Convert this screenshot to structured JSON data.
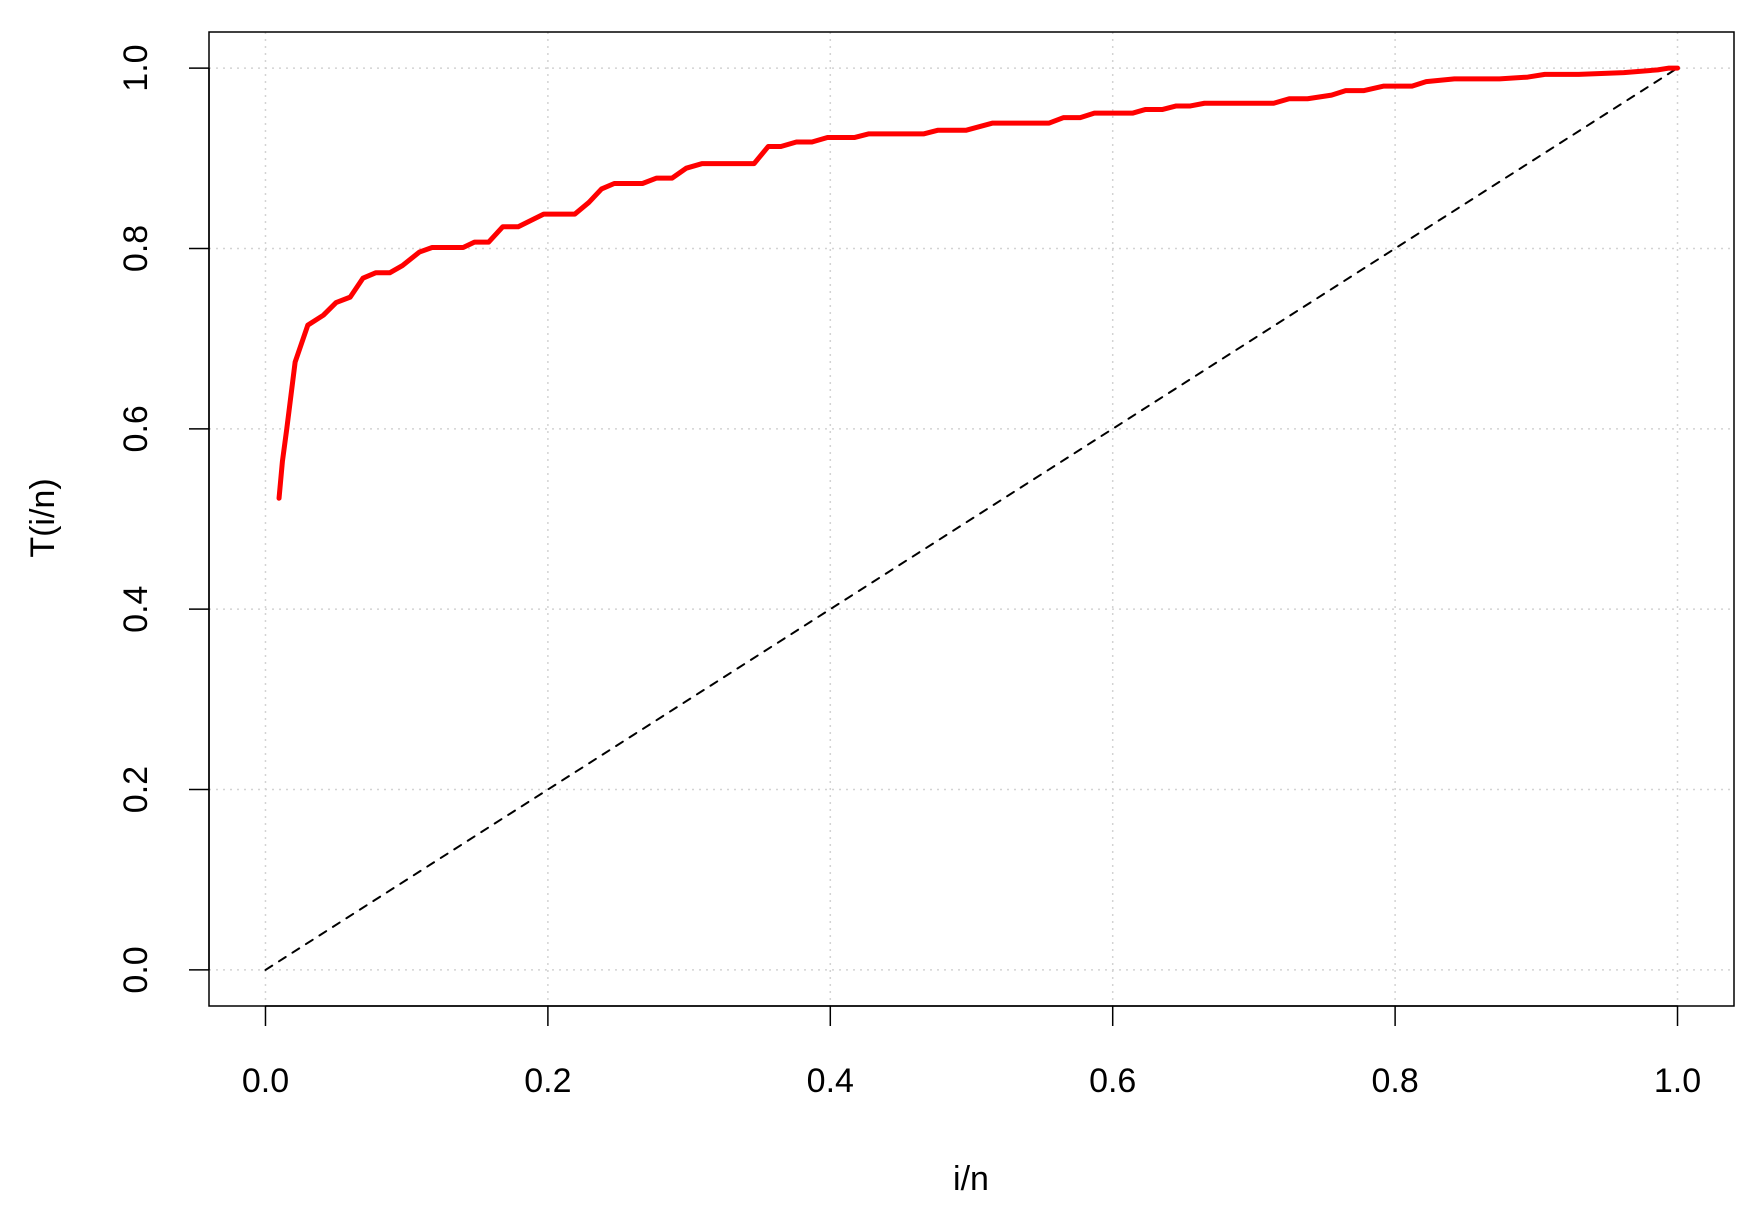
{
  "chart_data": {
    "type": "line",
    "xlabel": "i/n",
    "ylabel": "T(i/n)",
    "xlim": [
      -0.04,
      1.04
    ],
    "ylim": [
      -0.04,
      1.04
    ],
    "xticks": [
      {
        "value": 0,
        "label": "0.0"
      },
      0.2,
      0.4,
      0.6,
      0.8,
      {
        "value": 1,
        "label": "1.0"
      }
    ],
    "yticks": [
      {
        "value": 0,
        "label": "0.0"
      },
      0.2,
      0.4,
      0.6,
      0.8,
      {
        "value": 1,
        "label": "1.0"
      }
    ],
    "grid": true,
    "series": [
      {
        "color": "#ff0000",
        "dash": false,
        "x": [
          0.0096,
          0.012,
          0.015,
          0.021,
          0.03,
          0.041,
          0.05,
          0.06,
          0.069,
          0.078,
          0.088,
          0.097,
          0.109,
          0.118,
          0.14,
          0.148,
          0.158,
          0.168,
          0.179,
          0.197,
          0.219,
          0.229,
          0.238,
          0.247,
          0.267,
          0.277,
          0.288,
          0.298,
          0.309,
          0.346,
          0.356,
          0.365,
          0.376,
          0.387,
          0.398,
          0.417,
          0.427,
          0.466,
          0.476,
          0.496,
          0.515,
          0.555,
          0.565,
          0.577,
          0.587,
          0.614,
          0.623,
          0.635,
          0.645,
          0.655,
          0.665,
          0.714,
          0.725,
          0.738,
          0.755,
          0.765,
          0.778,
          0.792,
          0.812,
          0.822,
          0.842,
          0.874,
          0.894,
          0.906,
          0.93,
          0.962,
          0.986,
          0.994,
          1.0
        ],
        "values": [
          0.523,
          0.564,
          0.599,
          0.674,
          0.715,
          0.726,
          0.74,
          0.746,
          0.767,
          0.773,
          0.773,
          0.781,
          0.796,
          0.801,
          0.801,
          0.807,
          0.807,
          0.824,
          0.824,
          0.838,
          0.838,
          0.851,
          0.866,
          0.872,
          0.872,
          0.878,
          0.878,
          0.889,
          0.894,
          0.894,
          0.913,
          0.913,
          0.918,
          0.918,
          0.923,
          0.923,
          0.927,
          0.927,
          0.931,
          0.931,
          0.939,
          0.939,
          0.945,
          0.945,
          0.95,
          0.95,
          0.954,
          0.954,
          0.958,
          0.958,
          0.961,
          0.961,
          0.966,
          0.966,
          0.97,
          0.975,
          0.975,
          0.98,
          0.98,
          0.985,
          0.988,
          0.988,
          0.99,
          0.993,
          0.993,
          0.995,
          0.998,
          1.0,
          1.0
        ]
      },
      {
        "color": "#000000",
        "dash": true,
        "x": [
          0,
          1
        ],
        "values": [
          0,
          1
        ]
      }
    ]
  }
}
